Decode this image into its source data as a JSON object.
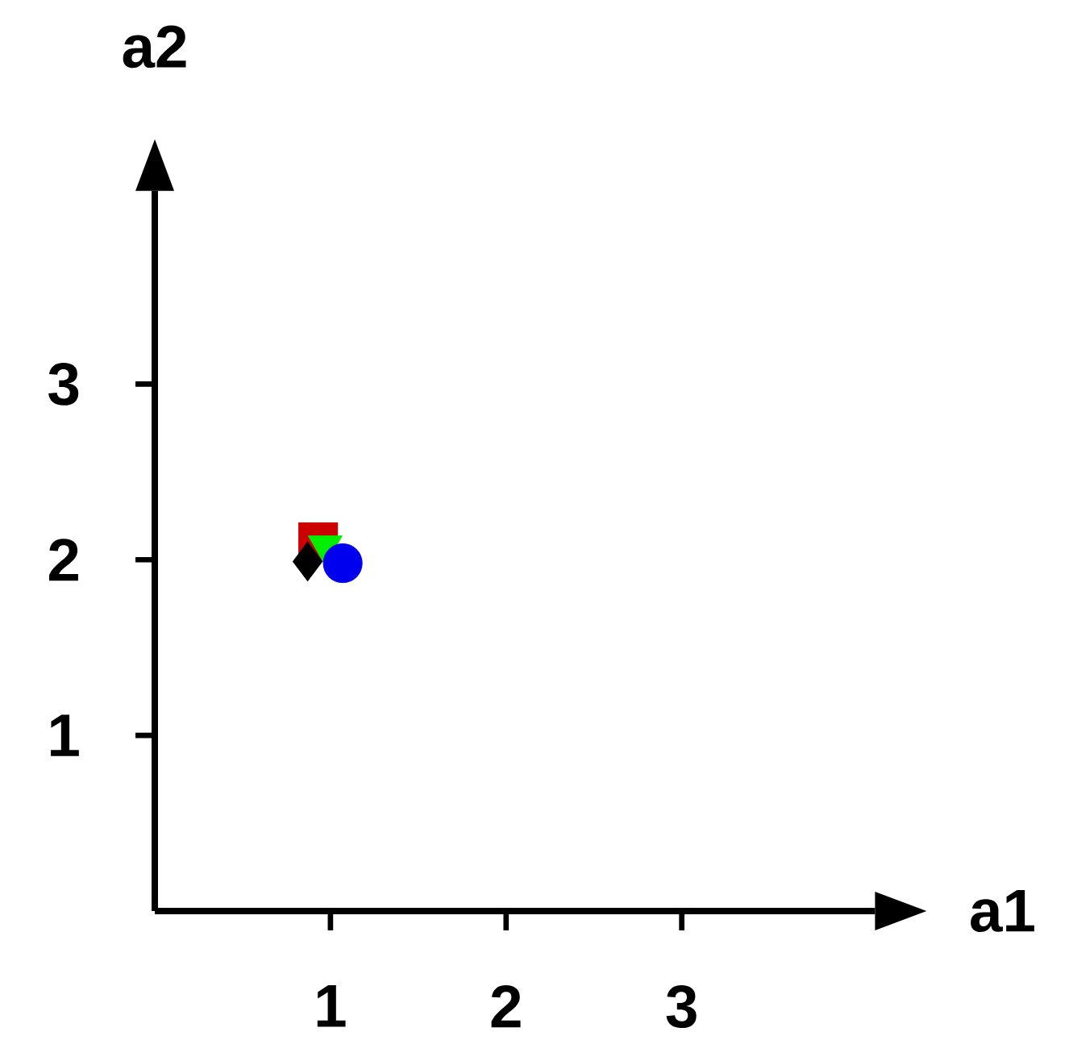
{
  "chart_data": {
    "type": "scatter",
    "xlabel": "a1",
    "ylabel": "a2",
    "xlim": [
      0,
      4.1
    ],
    "ylim": [
      0,
      4.1
    ],
    "xticks": [
      1,
      2,
      3
    ],
    "yticks": [
      1,
      2,
      3
    ],
    "grid": false,
    "series": [
      {
        "color": "#cc0000",
        "marker": "square",
        "x": [
          0.93
        ],
        "values": [
          2.1
        ]
      },
      {
        "color": "#000000",
        "marker": "diamond",
        "x": [
          0.87
        ],
        "values": [
          1.99
        ]
      },
      {
        "color": "#00ee00",
        "marker": "triangle",
        "x": [
          0.97
        ],
        "values": [
          2.08
        ]
      },
      {
        "color": "#0000ee",
        "marker": "circle",
        "x": [
          1.07
        ],
        "values": [
          1.98
        ]
      }
    ]
  }
}
